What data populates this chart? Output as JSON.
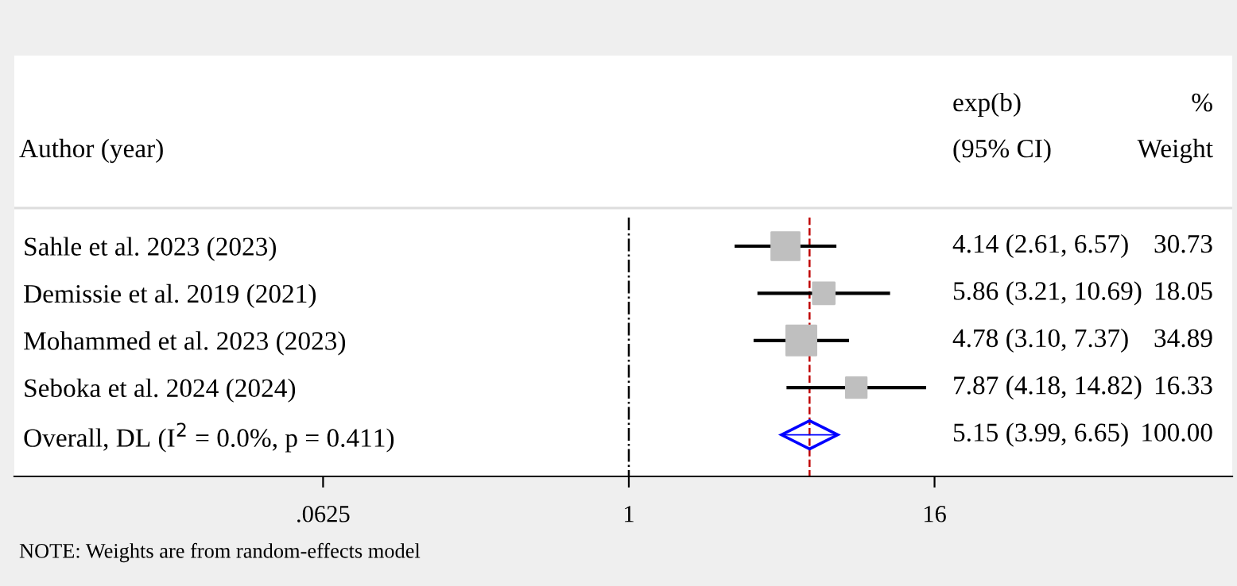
{
  "chart_data": {
    "type": "bubble",
    "categories": [
      "Sahle et al. 2023 (2023)",
      "Demissie et al. 2019 (2021)",
      "Mohammed et al. 2023 (2023)",
      "Seboka et al. 2024 (2024)",
      "Overall, DL (I$^{2}$ = 0.0%, p = 0.411)"
    ],
    "series": [
      {
        "color": "#bfbfbf",
        "marker": "square",
        "values": [
          4.14,
          5.86,
          4.78,
          7.87,
          null
        ],
        "sizes": [
          0.88,
          0.517,
          1,
          0.468,
          null
        ],
        "errors": [
          [
            2.61,
            6.57
          ],
          [
            3.21,
            10.69
          ],
          [
            3.1,
            7.37
          ],
          [
            4.18,
            14.82
          ],
          null
        ]
      },
      {
        "type": "scatter",
        "color": "#0000ff",
        "marker": "diamond",
        "values": [
          null,
          null,
          null,
          null,
          5.15
        ],
        "errors": [
          null,
          null,
          null,
          null,
          [
            3.99,
            6.65
          ]
        ]
      }
    ],
    "orientation": "horizontal",
    "log": "x",
    "xlim": [
      0.0038,
      238
    ],
    "xticks": [
      {
        "value": 0.0625,
        "label": ".0625"
      },
      {
        "value": 1,
        "label": "1"
      },
      {
        "value": 16,
        "label": "16"
      }
    ],
    "grid": false,
    "ref_lines": [
      {
        "axis": "x",
        "value": 1,
        "color": "#000000",
        "line_style": "dashdot"
      },
      {
        "axis": "x",
        "value": 5.15,
        "color": "#c00000",
        "line_style": "dashed"
      }
    ],
    "annotations": [
      "Author (year)",
      "exp(b)",
      "(95% CI)",
      "%",
      "Weight",
      "4.14 (2.61, 6.57)",
      "30.73",
      "5.86 (3.21, 10.69)",
      "18.05",
      "4.78 (3.10, 7.37)",
      "34.89",
      "7.87 (4.18, 14.82)",
      "16.33",
      "5.15 (3.99, 6.65)",
      "100.00",
      "NOTE: Weights are from random-effects model"
    ]
  }
}
